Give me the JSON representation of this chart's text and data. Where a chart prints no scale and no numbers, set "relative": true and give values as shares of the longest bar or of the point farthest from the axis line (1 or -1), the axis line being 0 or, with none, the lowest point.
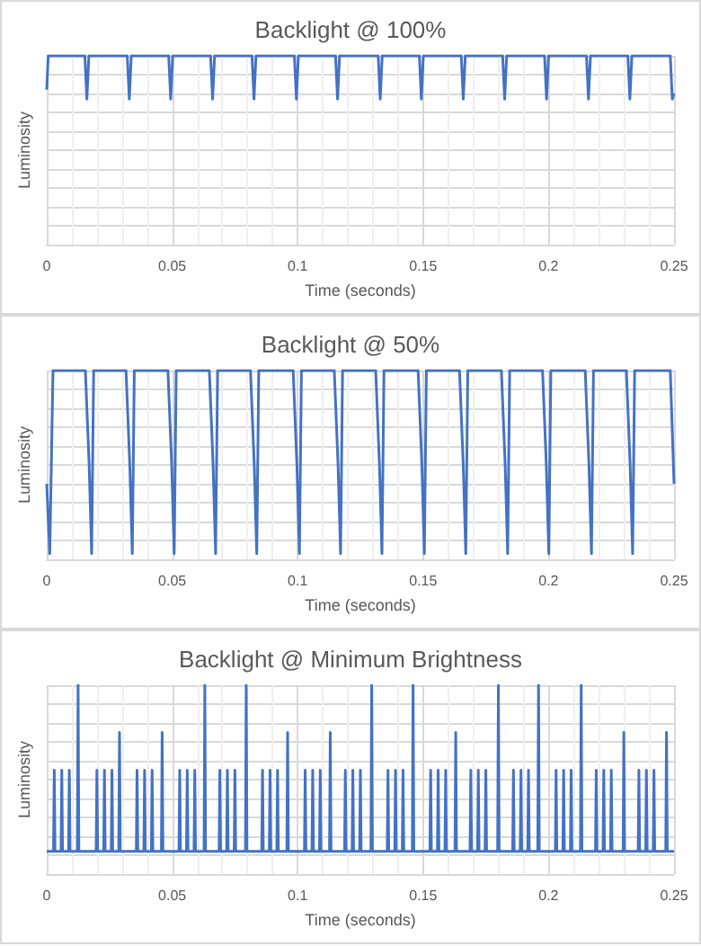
{
  "chart_data": [
    {
      "type": "line",
      "title": "Backlight @ 100%",
      "xlabel": "Time (seconds)",
      "ylabel": "Luminosity",
      "relative": true,
      "grid": true,
      "color": "#4472c4",
      "xlim": [
        0,
        0.25
      ],
      "xticks": [
        0,
        0.05,
        0.1,
        0.15,
        0.2,
        0.25
      ],
      "x": [
        0,
        0.0006,
        0.0152,
        0.016,
        0.0168,
        0.0321,
        0.0329,
        0.0337,
        0.0486,
        0.0494,
        0.0502,
        0.0653,
        0.0661,
        0.0669,
        0.0818,
        0.0826,
        0.0834,
        0.0987,
        0.0995,
        0.1003,
        0.1151,
        0.1159,
        0.1167,
        0.1321,
        0.1329,
        0.1337,
        0.1485,
        0.1493,
        0.1501,
        0.1652,
        0.166,
        0.1668,
        0.1817,
        0.1825,
        0.1833,
        0.1984,
        0.1992,
        0.2,
        0.2151,
        0.2159,
        0.2167,
        0.2316,
        0.2324,
        0.2332,
        0.2485,
        0.2493,
        0.25
      ],
      "values": [
        0.82,
        1,
        1,
        0.77,
        1,
        1,
        0.77,
        1,
        1,
        0.77,
        1,
        1,
        0.77,
        1,
        1,
        0.77,
        1,
        1,
        0.77,
        1,
        1,
        0.77,
        1,
        1,
        0.77,
        1,
        1,
        0.77,
        1,
        1,
        0.77,
        1,
        1,
        0.77,
        1,
        1,
        0.77,
        1,
        1,
        0.77,
        1,
        1,
        0.77,
        1,
        1,
        0.77,
        0.8
      ]
    },
    {
      "type": "line",
      "title": "Backlight @ 50%",
      "xlabel": "Time (seconds)",
      "ylabel": "Luminosity",
      "relative": true,
      "grid": true,
      "color": "#4472c4",
      "xlim": [
        0,
        0.25
      ],
      "xticks": [
        0,
        0.05,
        0.1,
        0.15,
        0.2,
        0.25
      ],
      "x": [
        0,
        0.0012,
        0.0025,
        0.0154,
        0.0169,
        0.0179,
        0.0187,
        0.0316,
        0.0331,
        0.0341,
        0.0349,
        0.0483,
        0.0498,
        0.0508,
        0.0516,
        0.0648,
        0.0663,
        0.0673,
        0.0681,
        0.0812,
        0.0827,
        0.0837,
        0.0845,
        0.0982,
        0.0997,
        0.1007,
        0.1015,
        0.1146,
        0.1161,
        0.1171,
        0.1179,
        0.1311,
        0.1326,
        0.1336,
        0.1344,
        0.148,
        0.1495,
        0.1505,
        0.1513,
        0.1645,
        0.166,
        0.167,
        0.1678,
        0.1812,
        0.1827,
        0.1837,
        0.1845,
        0.1976,
        0.1991,
        0.2001,
        0.2009,
        0.2146,
        0.2161,
        0.2171,
        0.2179,
        0.231,
        0.2325,
        0.2335,
        0.2343,
        0.2485,
        0.25
      ],
      "values": [
        0.4,
        0.03,
        1,
        1,
        0.5,
        0.03,
        1,
        1,
        0.5,
        0.03,
        1,
        1,
        0.5,
        0.03,
        1,
        1,
        0.5,
        0.03,
        1,
        1,
        0.5,
        0.03,
        1,
        1,
        0.5,
        0.03,
        1,
        1,
        0.5,
        0.03,
        1,
        1,
        0.5,
        0.03,
        1,
        1,
        0.5,
        0.03,
        1,
        1,
        0.5,
        0.03,
        1,
        1,
        0.5,
        0.03,
        1,
        1,
        0.5,
        0.03,
        1,
        1,
        0.5,
        0.03,
        1,
        1,
        0.5,
        0.03,
        1,
        1,
        0.4
      ]
    },
    {
      "type": "line",
      "title": "Backlight @ Minimum Brightness",
      "xlabel": "Time (seconds)",
      "ylabel": "Luminosity",
      "relative": true,
      "grid": true,
      "color": "#4472c4",
      "xlim": [
        0,
        0.25
      ],
      "xticks": [
        0,
        0.05,
        0.1,
        0.15,
        0.2,
        0.25
      ],
      "x": [
        0,
        0.0027,
        0.003,
        0.0033,
        0.0057,
        0.006,
        0.0063,
        0.0087,
        0.009,
        0.0093,
        0.0122,
        0.0125,
        0.0128,
        0.0197,
        0.02,
        0.0203,
        0.0227,
        0.023,
        0.0233,
        0.0257,
        0.026,
        0.0263,
        0.0287,
        0.029,
        0.0293,
        0.0357,
        0.036,
        0.0363,
        0.0387,
        0.039,
        0.0393,
        0.0417,
        0.042,
        0.0423,
        0.0457,
        0.046,
        0.0463,
        0.0527,
        0.053,
        0.0533,
        0.0557,
        0.056,
        0.0563,
        0.0587,
        0.059,
        0.0593,
        0.0627,
        0.063,
        0.0633,
        0.0687,
        0.069,
        0.0693,
        0.0717,
        0.072,
        0.0723,
        0.0747,
        0.075,
        0.0753,
        0.0792,
        0.0795,
        0.0798,
        0.0857,
        0.086,
        0.0863,
        0.0887,
        0.089,
        0.0893,
        0.0917,
        0.092,
        0.0923,
        0.0957,
        0.096,
        0.0963,
        0.1027,
        0.103,
        0.1033,
        0.1057,
        0.106,
        0.1063,
        0.1087,
        0.109,
        0.1093,
        0.1127,
        0.113,
        0.1133,
        0.1187,
        0.119,
        0.1193,
        0.1217,
        0.122,
        0.1223,
        0.1247,
        0.125,
        0.1253,
        0.1292,
        0.1295,
        0.1298,
        0.1357,
        0.136,
        0.1363,
        0.1387,
        0.139,
        0.1393,
        0.1417,
        0.142,
        0.1423,
        0.1457,
        0.146,
        0.1463,
        0.1527,
        0.153,
        0.1533,
        0.1557,
        0.156,
        0.1563,
        0.1587,
        0.159,
        0.1593,
        0.1627,
        0.163,
        0.1633,
        0.1687,
        0.169,
        0.1693,
        0.1717,
        0.172,
        0.1723,
        0.1747,
        0.175,
        0.1753,
        0.1797,
        0.18,
        0.1803,
        0.1857,
        0.186,
        0.1863,
        0.1887,
        0.189,
        0.1893,
        0.1917,
        0.192,
        0.1923,
        0.1957,
        0.196,
        0.1963,
        0.2027,
        0.203,
        0.2033,
        0.2057,
        0.206,
        0.2063,
        0.2087,
        0.209,
        0.2093,
        0.2127,
        0.213,
        0.2133,
        0.2187,
        0.219,
        0.2193,
        0.2217,
        0.222,
        0.2223,
        0.2247,
        0.225,
        0.2253,
        0.2297,
        0.23,
        0.2303,
        0.2357,
        0.236,
        0.2363,
        0.2387,
        0.239,
        0.2393,
        0.2417,
        0.242,
        0.2423,
        0.2467,
        0.247,
        0.2473,
        0.25
      ],
      "values": [
        0.12,
        0.12,
        0.55,
        0.12,
        0.12,
        0.55,
        0.12,
        0.12,
        0.55,
        0.12,
        0.12,
        1,
        0.12,
        0.12,
        0.55,
        0.12,
        0.12,
        0.55,
        0.12,
        0.12,
        0.55,
        0.12,
        0.12,
        0.75,
        0.12,
        0.12,
        0.55,
        0.12,
        0.12,
        0.55,
        0.12,
        0.12,
        0.55,
        0.12,
        0.12,
        0.75,
        0.12,
        0.12,
        0.55,
        0.12,
        0.12,
        0.55,
        0.12,
        0.12,
        0.55,
        0.12,
        0.12,
        1,
        0.12,
        0.12,
        0.55,
        0.12,
        0.12,
        0.55,
        0.12,
        0.12,
        0.55,
        0.12,
        0.12,
        1,
        0.12,
        0.12,
        0.55,
        0.12,
        0.12,
        0.55,
        0.12,
        0.12,
        0.55,
        0.12,
        0.12,
        0.75,
        0.12,
        0.12,
        0.55,
        0.12,
        0.12,
        0.55,
        0.12,
        0.12,
        0.55,
        0.12,
        0.12,
        0.75,
        0.12,
        0.12,
        0.55,
        0.12,
        0.12,
        0.55,
        0.12,
        0.12,
        0.55,
        0.12,
        0.12,
        1,
        0.12,
        0.12,
        0.55,
        0.12,
        0.12,
        0.55,
        0.12,
        0.12,
        0.55,
        0.12,
        0.12,
        1,
        0.12,
        0.12,
        0.55,
        0.12,
        0.12,
        0.55,
        0.12,
        0.12,
        0.55,
        0.12,
        0.12,
        0.75,
        0.12,
        0.12,
        0.55,
        0.12,
        0.12,
        0.55,
        0.12,
        0.12,
        0.55,
        0.12,
        0.12,
        1,
        0.12,
        0.12,
        0.55,
        0.12,
        0.12,
        0.55,
        0.12,
        0.12,
        0.55,
        0.12,
        0.12,
        1,
        0.12,
        0.12,
        0.55,
        0.12,
        0.12,
        0.55,
        0.12,
        0.12,
        0.55,
        0.12,
        0.12,
        1,
        0.12,
        0.12,
        0.55,
        0.12,
        0.12,
        0.55,
        0.12,
        0.12,
        0.55,
        0.12,
        0.12,
        0.75,
        0.12,
        0.12,
        0.55,
        0.12,
        0.12,
        0.55,
        0.12,
        0.12,
        0.55,
        0.12,
        0.12,
        0.75,
        0.12,
        0.12
      ]
    }
  ]
}
